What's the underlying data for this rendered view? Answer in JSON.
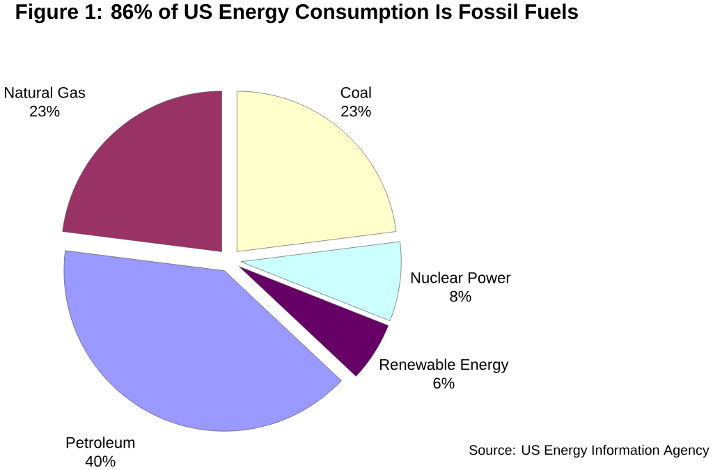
{
  "chart_data": {
    "type": "pie",
    "title": "Figure 1: 86% of US Energy Consumption Is Fossil Fuels",
    "categories": [
      "Coal",
      "Nuclear Power",
      "Renewable Energy",
      "Petroleum",
      "Natural Gas"
    ],
    "values": [
      23,
      8,
      6,
      40,
      23
    ],
    "colors": [
      "#ffffcc",
      "#ccffff",
      "#660066",
      "#9999ff",
      "#993366"
    ],
    "value_labels": [
      "23%",
      "8%",
      "6%",
      "40%",
      "23%"
    ],
    "annotations": [
      "Source: US Energy Information Agency"
    ]
  }
}
